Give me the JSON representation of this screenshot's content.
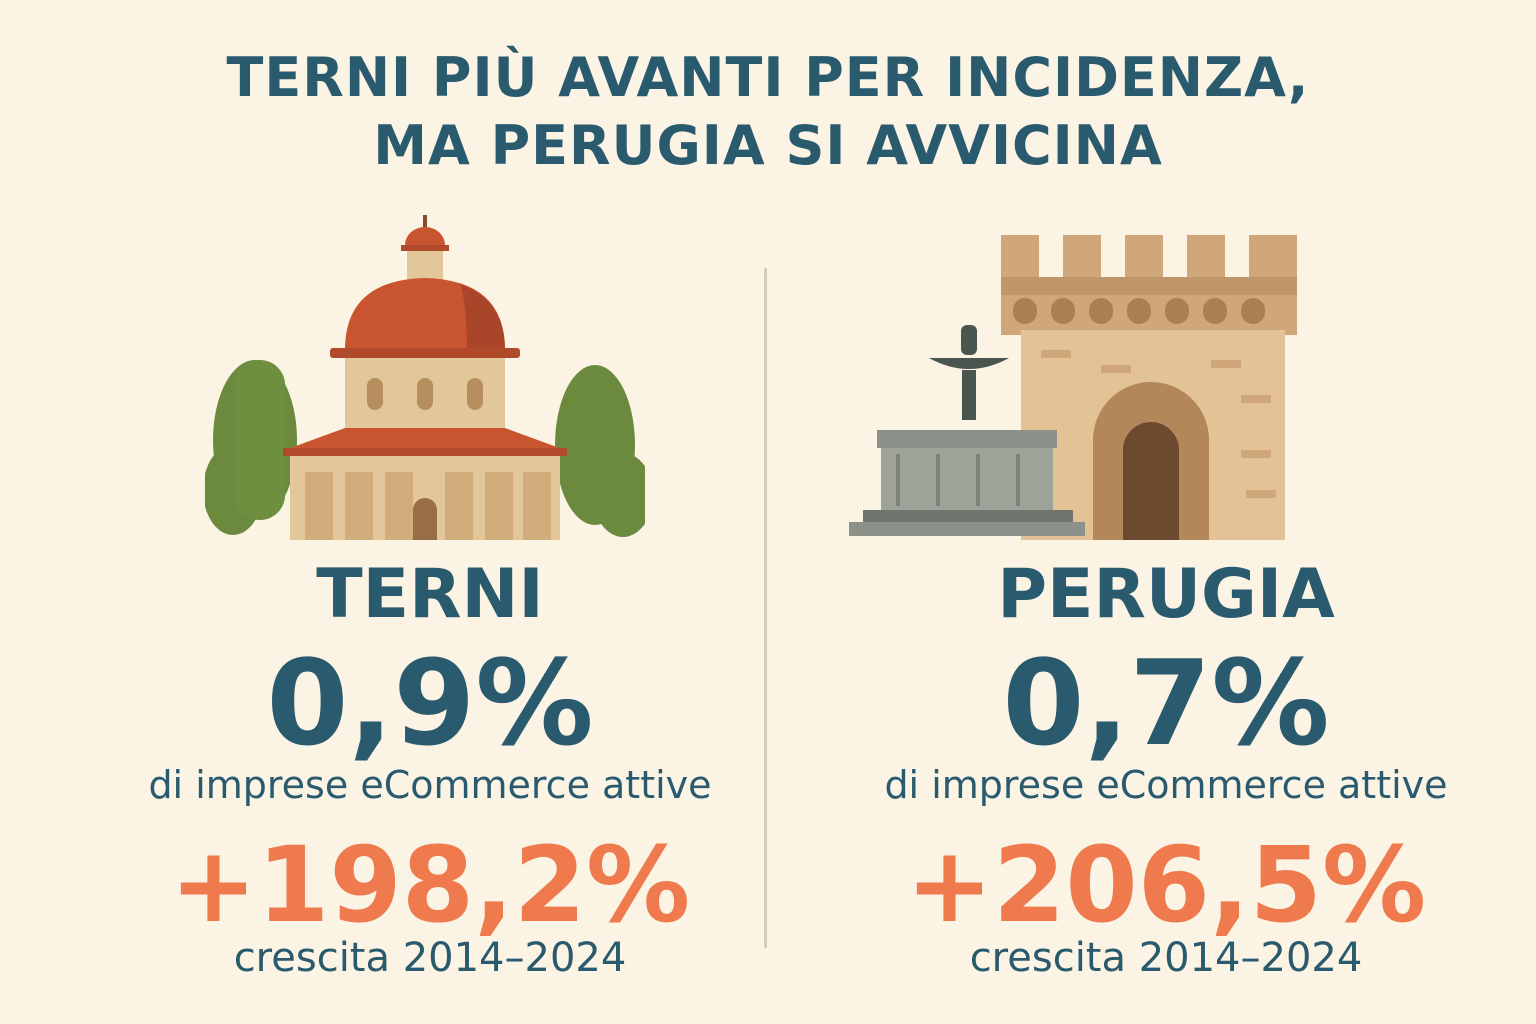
{
  "title": {
    "line1": "TERNI PIÙ AVANTI PER INCIDENZA,",
    "line2": "MA PERUGIA SI AVVICINA"
  },
  "colors": {
    "heading": "#2a5a6e",
    "accent": "#ee7a4e",
    "background": "#fbf3e4"
  },
  "terni": {
    "icon": "domed-church-icon",
    "name": "TERNI",
    "share": "0,9%",
    "share_label": "di imprese eCommerce attive",
    "growth": "+198,2%",
    "growth_label": "crescita 2014–2024"
  },
  "perugia": {
    "icon": "fountain-tower-icon",
    "name": "PERUGIA",
    "share": "0,7%",
    "share_label": "di imprese eCommerce attive",
    "growth": "+206,5%",
    "growth_label": "crescita 2014–2024"
  }
}
